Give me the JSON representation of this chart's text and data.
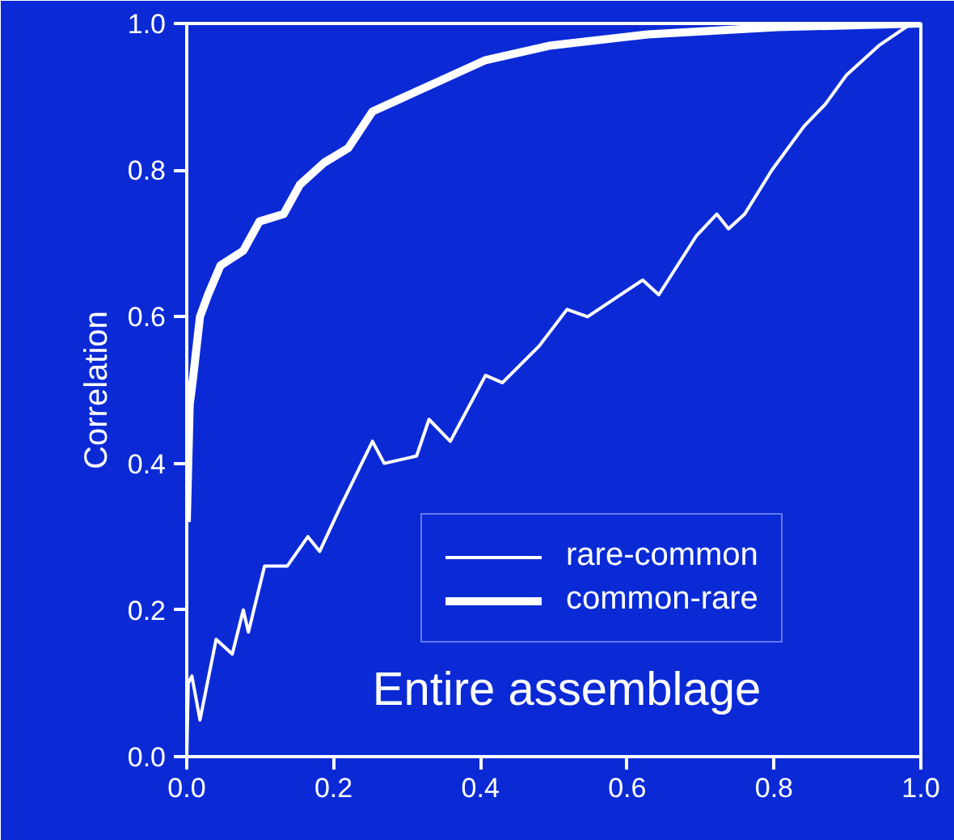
{
  "chart_data": {
    "type": "line",
    "ylabel": "Correlation",
    "annotations": [
      "Entire assemblage"
    ],
    "xlim": [
      0,
      1
    ],
    "ylim": [
      0,
      1
    ],
    "xticks": [
      {
        "value": 0,
        "label": "0.0"
      },
      0.2,
      0.4,
      0.6,
      0.8,
      {
        "value": 1,
        "label": "1.0"
      }
    ],
    "yticks": [
      {
        "value": 0,
        "label": "0.0"
      },
      0.2,
      0.4,
      0.6,
      0.8,
      {
        "value": 1,
        "label": "1.0"
      }
    ],
    "grid": false,
    "legend": "bottom right",
    "series": [
      {
        "name": "rare-common",
        "color": "#ffffff",
        "x": [
          0,
          0.002,
          0.007,
          0.018,
          0.04,
          0.062,
          0.077,
          0.084,
          0.106,
          0.137,
          0.165,
          0.181,
          0.209,
          0.253,
          0.269,
          0.313,
          0.33,
          0.359,
          0.407,
          0.43,
          0.48,
          0.518,
          0.546,
          0.621,
          0.643,
          0.694,
          0.722,
          0.738,
          0.76,
          0.797,
          0.841,
          0.87,
          0.899,
          0.943,
          0.987,
          1
        ],
        "values": [
          0,
          0.1,
          0.11,
          0.05,
          0.16,
          0.14,
          0.2,
          0.17,
          0.26,
          0.26,
          0.3,
          0.28,
          0.34,
          0.43,
          0.4,
          0.41,
          0.46,
          0.43,
          0.52,
          0.51,
          0.56,
          0.61,
          0.6,
          0.65,
          0.63,
          0.71,
          0.74,
          0.72,
          0.74,
          0.8,
          0.86,
          0.89,
          0.93,
          0.97,
          1.0,
          1.0
        ]
      },
      {
        "name": "common-rare",
        "color": "#ffffff",
        "x": [
          0,
          0.004,
          0.009,
          0.018,
          0.029,
          0.046,
          0.077,
          0.099,
          0.132,
          0.154,
          0.187,
          0.22,
          0.253,
          0.297,
          0.341,
          0.407,
          0.496,
          0.628,
          0.804,
          1
        ],
        "values": [
          0.32,
          0.48,
          0.52,
          0.6,
          0.63,
          0.67,
          0.69,
          0.73,
          0.74,
          0.78,
          0.81,
          0.83,
          0.88,
          0.9,
          0.92,
          0.95,
          0.97,
          0.985,
          0.995,
          1.0
        ]
      }
    ]
  }
}
